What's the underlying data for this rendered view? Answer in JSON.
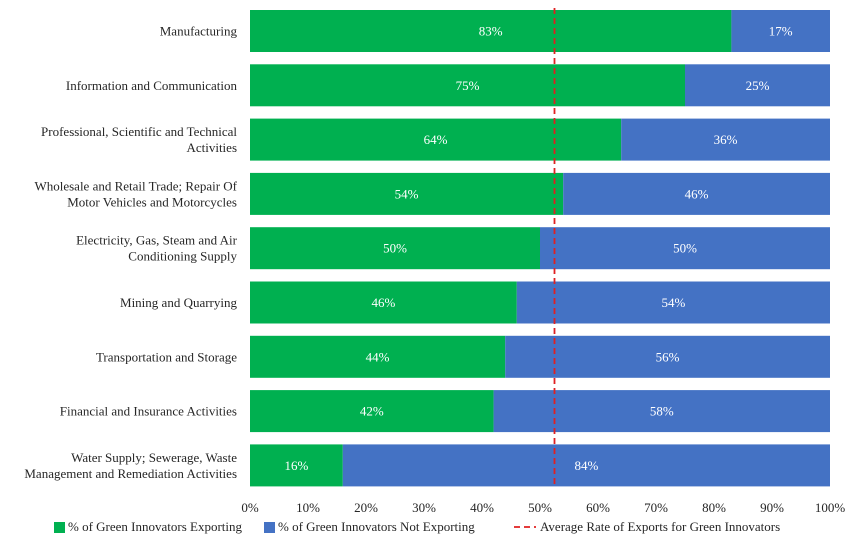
{
  "chart_data": {
    "type": "bar",
    "orientation": "horizontal",
    "stacked": true,
    "categories": [
      [
        "Manufacturing"
      ],
      [
        "Information and Communication"
      ],
      [
        "Professional, Scientific and Technical",
        "Activities"
      ],
      [
        "Wholesale and Retail Trade; Repair Of",
        "Motor Vehicles and Motorcycles"
      ],
      [
        "Electricity, Gas, Steam and Air",
        "Conditioning Supply"
      ],
      [
        "Mining and Quarrying"
      ],
      [
        "Transportation and Storage"
      ],
      [
        "Financial and Insurance Activities"
      ],
      [
        "Water Supply; Sewerage, Waste",
        "Management and Remediation Activities"
      ]
    ],
    "series": [
      {
        "name": "% of Green Innovators Exporting",
        "color": "#00b050",
        "values": [
          83,
          75,
          64,
          54,
          50,
          46,
          44,
          42,
          16
        ],
        "labels": [
          "83%",
          "75%",
          "64%",
          "54%",
          "50%",
          "46%",
          "44%",
          "42%",
          "16%"
        ]
      },
      {
        "name": "% of Green Innovators Not Exporting",
        "color": "#4472c4",
        "values": [
          17,
          25,
          36,
          46,
          50,
          54,
          56,
          58,
          84
        ],
        "labels": [
          "17%",
          "25%",
          "36%",
          "46%",
          "50%",
          "54%",
          "56%",
          "58%",
          "84%"
        ]
      }
    ],
    "reference_line": {
      "name": "Average Rate of Exports for Green Innovators",
      "value": 52.5,
      "color": "#e02020",
      "style": "dashed"
    },
    "x_ticks": [
      "0%",
      "10%",
      "20%",
      "30%",
      "40%",
      "50%",
      "60%",
      "70%",
      "80%",
      "90%",
      "100%"
    ],
    "xlim": [
      0,
      100
    ],
    "grid": false,
    "legend_position": "bottom"
  }
}
